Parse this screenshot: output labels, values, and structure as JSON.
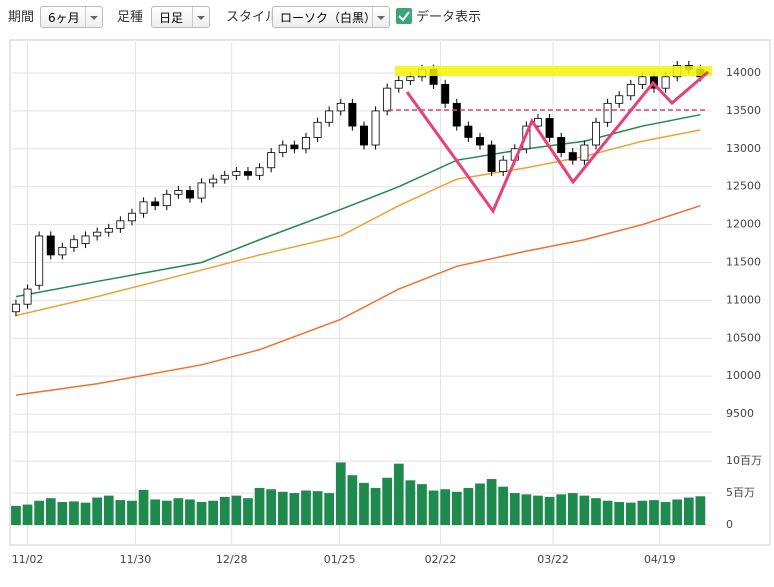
{
  "toolbar": {
    "period_label": "期間",
    "period_value": "6ヶ月",
    "bar_label": "足種",
    "bar_value": "日足",
    "style_label": "スタイル",
    "style_value": "ローソク（白黒）",
    "data_display": "データ表示"
  },
  "chart_data": {
    "type": "candlestick",
    "up_color": "#ffffff",
    "down_color": "#000000",
    "open": [
      10850,
      10950,
      11200,
      11850,
      11600,
      11700,
      11750,
      11850,
      11900,
      11950,
      12050,
      12150,
      12300,
      12250,
      12400,
      12450,
      12350,
      12550,
      12600,
      12650,
      12700,
      12650,
      12750,
      12950,
      13050,
      13000,
      13150,
      13350,
      13500,
      13600,
      13300,
      13050,
      13500,
      13800,
      13900,
      13950,
      14050,
      13850,
      13600,
      13300,
      13150,
      13050,
      12700,
      12850,
      13000,
      13300,
      13400,
      13150,
      12950,
      12850,
      13050,
      13350,
      13600,
      13700,
      13850,
      13950,
      13800,
      13950,
      14100,
      14050
    ],
    "high": [
      11010,
      11210,
      11910,
      11910,
      11760,
      11860,
      11910,
      11960,
      12010,
      12110,
      12210,
      12360,
      12360,
      12460,
      12510,
      12510,
      12610,
      12660,
      12710,
      12760,
      12760,
      12810,
      13010,
      13110,
      13110,
      13210,
      13410,
      13560,
      13660,
      13660,
      13360,
      13560,
      13860,
      13960,
      14010,
      14110,
      14110,
      13910,
      13660,
      13360,
      13210,
      13110,
      12910,
      13060,
      13360,
      13460,
      13460,
      13210,
      13010,
      13110,
      13410,
      13660,
      13760,
      13910,
      14010,
      14010,
      14010,
      14160,
      14160,
      14110
    ],
    "low": [
      10790,
      10890,
      11140,
      11540,
      11540,
      11640,
      11690,
      11790,
      11840,
      11890,
      11990,
      12090,
      12190,
      12190,
      12340,
      12290,
      12290,
      12490,
      12540,
      12590,
      12590,
      12590,
      12690,
      12890,
      12940,
      12940,
      13090,
      13290,
      13440,
      13240,
      12990,
      12990,
      13440,
      13740,
      13840,
      13890,
      13790,
      13540,
      13240,
      13090,
      12990,
      12640,
      12640,
      12790,
      12940,
      13240,
      13090,
      12890,
      12790,
      12790,
      12990,
      13290,
      13540,
      13640,
      13790,
      13740,
      13740,
      13890,
      13990,
      13890
    ],
    "close": [
      10950,
      11150,
      11850,
      11600,
      11700,
      11800,
      11850,
      11900,
      11950,
      12050,
      12150,
      12300,
      12250,
      12400,
      12450,
      12350,
      12550,
      12600,
      12650,
      12700,
      12650,
      12750,
      12950,
      13050,
      13000,
      13150,
      13350,
      13500,
      13600,
      13300,
      13050,
      13500,
      13800,
      13900,
      13950,
      14050,
      13850,
      13600,
      13300,
      13150,
      13050,
      12700,
      12850,
      13000,
      13300,
      13400,
      13150,
      12950,
      12850,
      13050,
      13350,
      13600,
      13700,
      13850,
      13950,
      13800,
      13950,
      14100,
      14050,
      13950
    ],
    "volume": [
      3.0,
      3.2,
      3.8,
      4.2,
      3.6,
      3.7,
      3.5,
      4.3,
      4.6,
      3.9,
      3.8,
      5.5,
      4.0,
      3.8,
      4.2,
      4.0,
      3.6,
      3.8,
      4.4,
      4.6,
      4.2,
      5.8,
      5.6,
      5.2,
      5.0,
      5.4,
      5.3,
      5.0,
      9.8,
      7.8,
      6.6,
      5.8,
      7.4,
      9.6,
      7.0,
      6.4,
      5.4,
      5.6,
      5.2,
      5.8,
      6.5,
      7.2,
      6.0,
      5.0,
      4.8,
      4.6,
      4.4,
      4.8,
      5.0,
      4.6,
      4.2,
      3.8,
      3.6,
      3.5,
      3.8,
      3.9,
      3.6,
      4.0,
      4.3,
      4.5
    ],
    "volume_color": "#1e8a4e",
    "ma_x": [
      0,
      7,
      16,
      21,
      28,
      33,
      38,
      44,
      49,
      54,
      59
    ],
    "moving_averages": [
      {
        "color": "#1e8a4e",
        "values": [
          11050,
          11250,
          11500,
          11800,
          12200,
          12500,
          12850,
          13000,
          13100,
          13300,
          13450
        ]
      },
      {
        "color": "#f0a030",
        "values": [
          10800,
          11050,
          11400,
          11600,
          11850,
          12250,
          12600,
          12750,
          12900,
          13100,
          13250
        ]
      },
      {
        "color": "#f07030",
        "values": [
          9750,
          9900,
          10150,
          10350,
          10750,
          11150,
          11450,
          11650,
          11800,
          12000,
          12250
        ]
      }
    ],
    "xlim": [
      -0.34,
      60
    ],
    "xticks": [
      {
        "value": 1,
        "label": "11/02"
      },
      {
        "value": 10.3,
        "label": "11/30"
      },
      {
        "value": 18.6,
        "label": "12/28"
      },
      {
        "value": 27.9,
        "label": "01/25"
      },
      {
        "value": 36.6,
        "label": "02/22"
      },
      {
        "value": 46.3,
        "label": "03/22"
      },
      {
        "value": 55.5,
        "label": "04/19"
      }
    ],
    "ylim": [
      9290,
      14330
    ],
    "yticks": [
      9500,
      10000,
      10500,
      11000,
      11500,
      12000,
      12500,
      13000,
      13500,
      14000
    ],
    "volume_ylim": [
      0,
      13
    ],
    "volume_ticks": [
      {
        "value": 0,
        "label": "0"
      },
      {
        "value": 5,
        "label": "5百万"
      },
      {
        "value": 10,
        "label": "10百万"
      }
    ],
    "grid": true
  }
}
